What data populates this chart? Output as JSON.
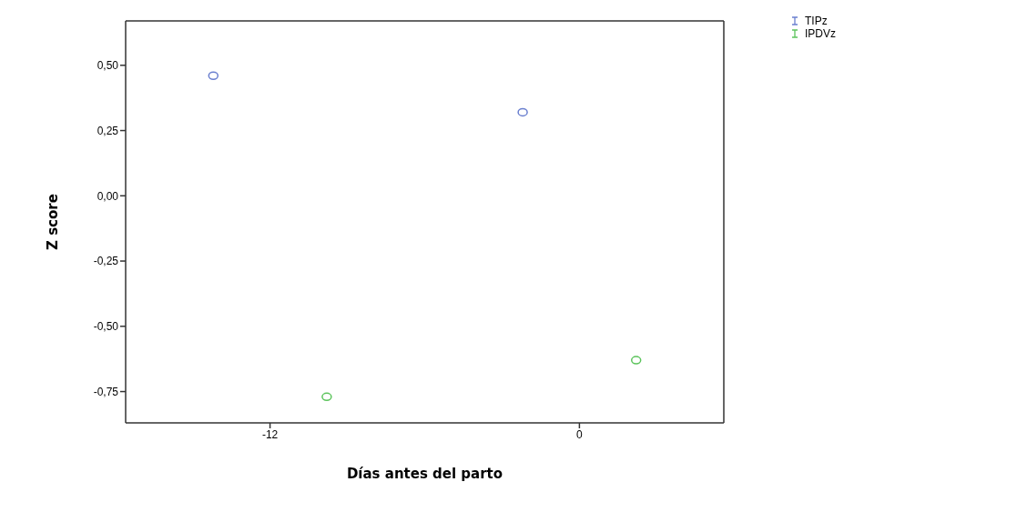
{
  "chart_data": {
    "type": "scatter",
    "xlabel": "Días antes del parto",
    "ylabel": "Z score",
    "xlim": [
      -17.6,
      5.6
    ],
    "xticks": [
      -12,
      0
    ],
    "ylim": [
      -0.87,
      0.67
    ],
    "yticks": [
      {
        "value": -0.75,
        "label": "-0,75"
      },
      {
        "value": -0.5,
        "label": "-0,50"
      },
      {
        "value": -0.25,
        "label": "-0,25"
      },
      {
        "value": 0,
        "label": "0,00"
      },
      {
        "value": 0.25,
        "label": "0,25"
      },
      {
        "value": 0.5,
        "label": "0,50"
      }
    ],
    "series": [
      {
        "name": "TIPz",
        "color": "#6a7fcf",
        "x": [
          -14.2,
          -2.2
        ],
        "values": [
          0.46,
          0.32
        ]
      },
      {
        "name": "IPDVz",
        "color": "#5cc45c",
        "x": [
          -9.8,
          2.2
        ],
        "values": [
          -0.77,
          -0.63
        ]
      }
    ],
    "marker": "circle",
    "legend": "top right",
    "grid": false
  }
}
